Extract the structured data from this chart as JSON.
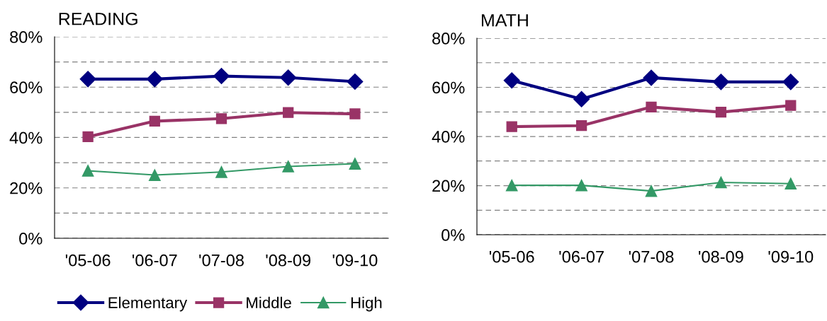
{
  "chart_data": [
    {
      "type": "line",
      "title": "READING",
      "categories": [
        "'05-06",
        "'06-07",
        "'07-08",
        "'08-09",
        "'09-10"
      ],
      "ylim": [
        0,
        80
      ],
      "yticks": [
        {
          "value": 0,
          "label": "0%"
        },
        {
          "value": 10,
          "label": null
        },
        {
          "value": 20,
          "label": "20%"
        },
        {
          "value": 30,
          "label": null
        },
        {
          "value": 40,
          "label": "40%"
        },
        {
          "value": 50,
          "label": null
        },
        {
          "value": 60,
          "label": "60%"
        },
        {
          "value": 70,
          "label": null
        },
        {
          "value": 80,
          "label": "80%"
        }
      ],
      "grid": "y",
      "legend": "bottom",
      "series": [
        {
          "name": "Elementary",
          "color": "#000080",
          "marker": "diamond",
          "values": [
            63.2,
            63.2,
            64.4,
            63.8,
            62.2
          ]
        },
        {
          "name": "Middle",
          "color": "#993366",
          "marker": "square",
          "values": [
            40.3,
            46.5,
            47.5,
            49.9,
            49.4
          ]
        },
        {
          "name": "High",
          "color": "#339966",
          "marker": "triangle",
          "values": [
            26.8,
            25.1,
            26.3,
            28.5,
            29.6
          ]
        }
      ]
    },
    {
      "type": "line",
      "title": "MATH",
      "categories": [
        "'05-06",
        "'06-07",
        "'07-08",
        "'08-09",
        "'09-10"
      ],
      "ylim": [
        0,
        80
      ],
      "yticks": [
        {
          "value": 0,
          "label": "0%"
        },
        {
          "value": 10,
          "label": null
        },
        {
          "value": 20,
          "label": "20%"
        },
        {
          "value": 30,
          "label": null
        },
        {
          "value": 40,
          "label": "40%"
        },
        {
          "value": 50,
          "label": null
        },
        {
          "value": 60,
          "label": "60%"
        },
        {
          "value": 70,
          "label": null
        },
        {
          "value": 80,
          "label": "80%"
        }
      ],
      "grid": "y",
      "series": [
        {
          "color": "#000080",
          "marker": "diamond",
          "values": [
            62.8,
            55.2,
            63.9,
            62.2,
            62.2
          ]
        },
        {
          "color": "#993366",
          "marker": "square",
          "values": [
            44.0,
            44.4,
            52.0,
            49.9,
            52.6
          ]
        },
        {
          "color": "#339966",
          "marker": "triangle",
          "values": [
            20.1,
            20.1,
            17.8,
            21.3,
            20.8
          ]
        }
      ]
    }
  ]
}
